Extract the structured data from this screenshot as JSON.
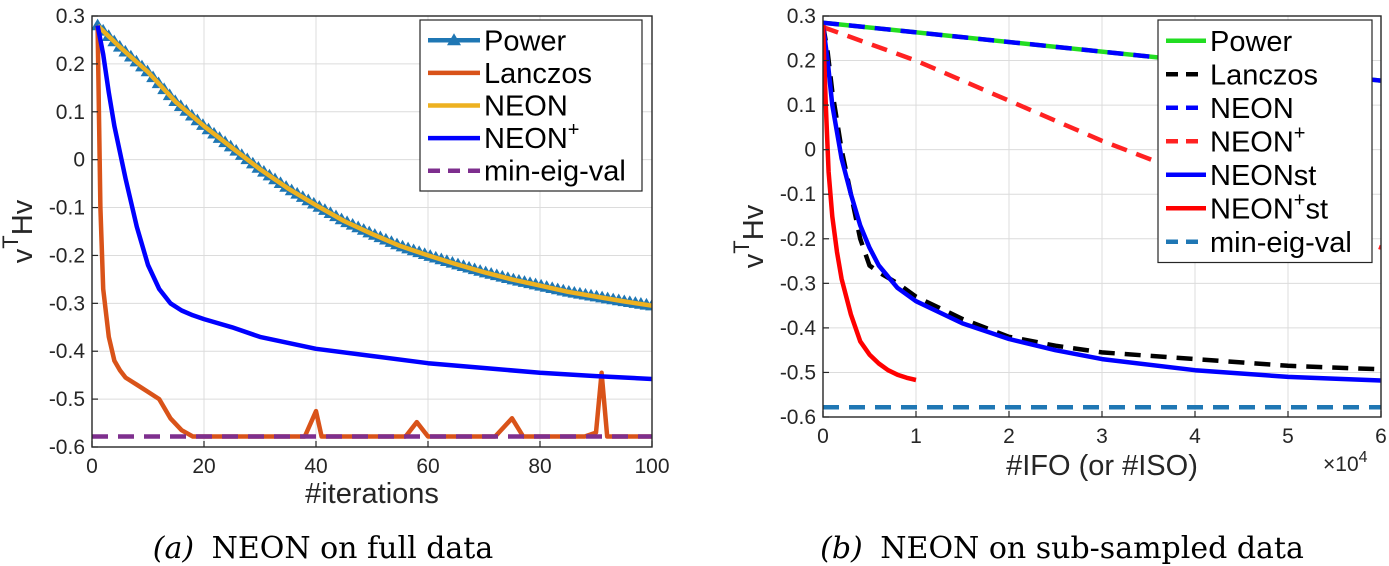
{
  "chart_data": [
    {
      "type": "line",
      "panel": "a",
      "caption_letter": "(a)",
      "caption_text": "NEON on full data",
      "xlabel": "#iterations",
      "ylabel_base": "v",
      "ylabel_sup": "T",
      "ylabel_tail": "Hv",
      "xlim": [
        0,
        100
      ],
      "ylim": [
        -0.6,
        0.3
      ],
      "xticks": [
        "0",
        "20",
        "40",
        "60",
        "80",
        "100"
      ],
      "yticks": [
        "0.3",
        "0.2",
        "0.1",
        "0",
        "-0.1",
        "-0.2",
        "-0.3",
        "-0.4",
        "-0.5",
        "-0.6"
      ],
      "grid": true,
      "legend_position": "top-right",
      "series": [
        {
          "name": "Power",
          "sup": "",
          "tail": "",
          "color": "#1f77b4",
          "dash": "solid",
          "marker": "triangle",
          "x": [
            1,
            5,
            10,
            15,
            20,
            25,
            30,
            35,
            40,
            45,
            50,
            55,
            60,
            65,
            70,
            75,
            80,
            85,
            90,
            95,
            100
          ],
          "y": [
            0.28,
            0.235,
            0.183,
            0.12,
            0.07,
            0.025,
            -0.02,
            -0.06,
            -0.095,
            -0.128,
            -0.155,
            -0.18,
            -0.2,
            -0.218,
            -0.235,
            -0.25,
            -0.263,
            -0.276,
            -0.286,
            -0.296,
            -0.305
          ]
        },
        {
          "name": "Lanczos",
          "sup": "",
          "tail": "",
          "color": "#d95319",
          "dash": "solid",
          "marker": "none",
          "x": [
            1,
            1.5,
            2,
            3,
            4,
            5,
            6,
            8,
            10,
            12,
            14,
            16,
            18,
            20,
            38,
            40,
            41,
            56,
            58,
            60,
            72,
            75,
            77,
            88,
            90,
            91,
            92,
            94,
            100
          ],
          "y": [
            0.28,
            -0.1,
            -0.27,
            -0.37,
            -0.42,
            -0.44,
            -0.455,
            -0.47,
            -0.485,
            -0.5,
            -0.54,
            -0.565,
            -0.578,
            -0.578,
            -0.578,
            -0.525,
            -0.578,
            -0.578,
            -0.548,
            -0.578,
            -0.578,
            -0.54,
            -0.578,
            -0.578,
            -0.57,
            -0.445,
            -0.578,
            -0.578,
            -0.578
          ]
        },
        {
          "name": "NEON",
          "sup": "",
          "tail": "",
          "color": "#edb120",
          "dash": "solid",
          "marker": "none",
          "x": [
            1,
            5,
            10,
            15,
            20,
            25,
            30,
            35,
            40,
            45,
            50,
            55,
            60,
            65,
            70,
            75,
            80,
            85,
            90,
            95,
            100
          ],
          "y": [
            0.28,
            0.235,
            0.183,
            0.12,
            0.07,
            0.025,
            -0.02,
            -0.06,
            -0.095,
            -0.128,
            -0.155,
            -0.18,
            -0.2,
            -0.218,
            -0.235,
            -0.25,
            -0.263,
            -0.276,
            -0.286,
            -0.296,
            -0.305
          ]
        },
        {
          "name": "NEON",
          "sup": "+",
          "tail": "",
          "color": "#0000ff",
          "dash": "solid",
          "marker": "none",
          "x": [
            1,
            2,
            3,
            4,
            6,
            8,
            10,
            12,
            14,
            16,
            18,
            20,
            25,
            30,
            40,
            50,
            60,
            70,
            80,
            90,
            100
          ],
          "y": [
            0.28,
            0.22,
            0.14,
            0.07,
            -0.04,
            -0.14,
            -0.22,
            -0.27,
            -0.3,
            -0.315,
            -0.325,
            -0.333,
            -0.35,
            -0.37,
            -0.395,
            -0.41,
            -0.425,
            -0.435,
            -0.445,
            -0.452,
            -0.458
          ]
        },
        {
          "name": "min-eig-val",
          "sup": "",
          "tail": "",
          "color": "#7e2f8e",
          "dash": "dashed",
          "marker": "none",
          "x": [
            0,
            100
          ],
          "y": [
            -0.578,
            -0.578
          ]
        }
      ]
    },
    {
      "type": "line",
      "panel": "b",
      "caption_letter": "(b)",
      "caption_text": "NEON on sub-sampled data",
      "xlabel": "#IFO (or #ISO)",
      "ylabel_base": "v",
      "ylabel_sup": "T",
      "ylabel_tail": "Hv",
      "xlim": [
        0,
        6
      ],
      "ylim": [
        -0.6,
        0.3
      ],
      "xticks": [
        "0",
        "1",
        "2",
        "3",
        "4",
        "5",
        "6"
      ],
      "yticks": [
        "0.3",
        "0.2",
        "0.1",
        "0",
        "-0.1",
        "-0.2",
        "-0.3",
        "-0.4",
        "-0.5",
        "-0.6"
      ],
      "x_multiplier_base": "×10",
      "x_multiplier_exp": "4",
      "grid": true,
      "legend_position": "top-right",
      "series": [
        {
          "name": "Power",
          "sup": "",
          "tail": "",
          "color": "#22dd22",
          "dash": "solid",
          "marker": "none",
          "x": [
            0,
            6
          ],
          "y": [
            0.285,
            0.155
          ]
        },
        {
          "name": "Lanczos",
          "sup": "",
          "tail": "",
          "color": "#000000",
          "dash": "dashed",
          "marker": "none",
          "x": [
            0,
            0.05,
            0.1,
            0.2,
            0.3,
            0.4,
            0.5,
            0.6,
            0.8,
            1,
            1.5,
            2,
            2.5,
            3,
            4,
            5,
            6
          ],
          "y": [
            0.28,
            0.22,
            0.13,
            0,
            -0.1,
            -0.2,
            -0.26,
            -0.275,
            -0.3,
            -0.33,
            -0.38,
            -0.42,
            -0.44,
            -0.455,
            -0.47,
            -0.485,
            -0.493
          ]
        },
        {
          "name": "NEON",
          "sup": "",
          "tail": "",
          "color": "#0000ff",
          "dash": "dashed",
          "marker": "none",
          "x": [
            0,
            6
          ],
          "y": [
            0.285,
            0.155
          ]
        },
        {
          "name": "NEON",
          "sup": "+",
          "tail": "",
          "color": "#ff2222",
          "dash": "dashed",
          "marker": "none",
          "x": [
            0,
            1,
            2,
            3,
            4,
            5,
            6
          ],
          "y": [
            0.275,
            0.2,
            0.11,
            0.02,
            -0.06,
            -0.14,
            -0.22
          ]
        },
        {
          "name": "NEONst",
          "sup": "",
          "tail": "",
          "color": "#0000ff",
          "dash": "solid",
          "marker": "none",
          "x": [
            0,
            0.05,
            0.1,
            0.2,
            0.3,
            0.4,
            0.5,
            0.6,
            0.8,
            1,
            1.5,
            2,
            2.5,
            3,
            4,
            5,
            6
          ],
          "y": [
            0.28,
            0.2,
            0.1,
            -0.02,
            -0.1,
            -0.17,
            -0.22,
            -0.26,
            -0.31,
            -0.34,
            -0.39,
            -0.425,
            -0.45,
            -0.47,
            -0.495,
            -0.51,
            -0.518
          ]
        },
        {
          "name": "NEON",
          "sup": "+",
          "tail": "st",
          "color": "#ff0000",
          "dash": "solid",
          "marker": "none",
          "x": [
            0,
            0.03,
            0.06,
            0.1,
            0.15,
            0.2,
            0.3,
            0.4,
            0.5,
            0.6,
            0.7,
            0.8,
            0.9,
            1
          ],
          "y": [
            0.28,
            0.1,
            -0.05,
            -0.15,
            -0.23,
            -0.29,
            -0.37,
            -0.43,
            -0.46,
            -0.48,
            -0.495,
            -0.505,
            -0.512,
            -0.517
          ]
        },
        {
          "name": "min-eig-val",
          "sup": "",
          "tail": "",
          "color": "#1f77b4",
          "dash": "dashed",
          "marker": "none",
          "x": [
            0,
            6
          ],
          "y": [
            -0.578,
            -0.578
          ]
        }
      ]
    }
  ]
}
